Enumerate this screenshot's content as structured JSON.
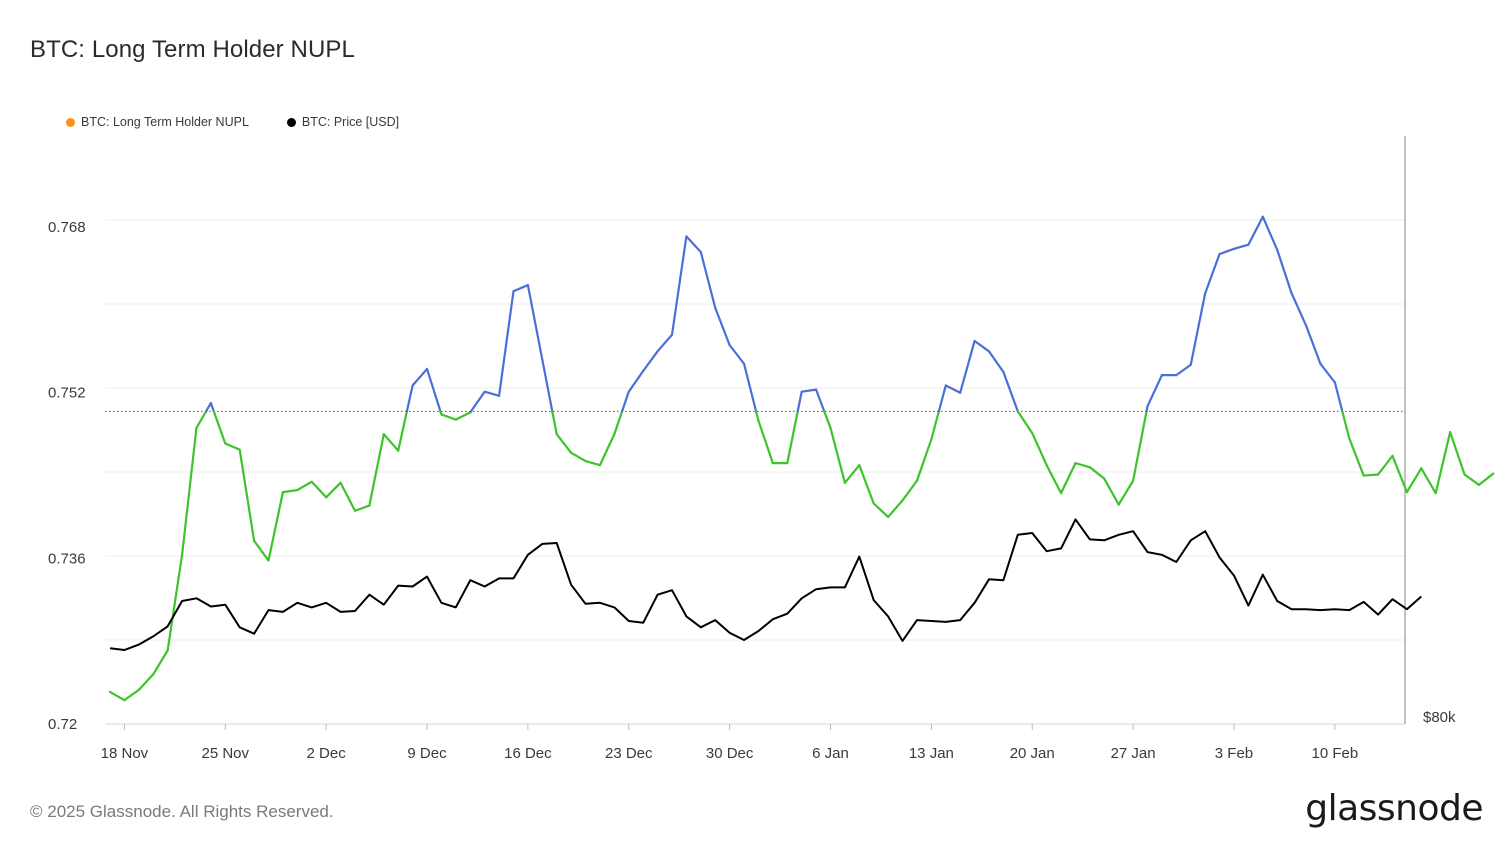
{
  "title": "BTC: Long Term Holder NUPL",
  "footer": "© 2025 Glassnode. All Rights Reserved.",
  "logo": "glassnode",
  "legend": [
    {
      "label": "BTC: Long Term Holder NUPL",
      "color": "#f7931a"
    },
    {
      "label": "BTC: Price [USD]",
      "color": "#000000"
    }
  ],
  "colors": {
    "above_threshold": "#4a6fd8",
    "below_threshold": "#3cc42a",
    "price": "#000000",
    "threshold_line": "#555555"
  },
  "chart_data": {
    "type": "line",
    "title": "BTC: Long Term Holder NUPL",
    "x_labels": [
      "18 Nov",
      "25 Nov",
      "2 Dec",
      "9 Dec",
      "16 Dec",
      "23 Dec",
      "30 Dec",
      "6 Jan",
      "13 Jan",
      "20 Jan",
      "27 Jan",
      "3 Feb",
      "10 Feb"
    ],
    "x_label_day_index": [
      1,
      8,
      15,
      22,
      29,
      36,
      43,
      50,
      57,
      64,
      71,
      78,
      85
    ],
    "y_ticks": [
      "0.72",
      "0.736",
      "0.752",
      "0.768"
    ],
    "y_tick_values": [
      0.72,
      0.736,
      0.752,
      0.768
    ],
    "ylim": [
      0.72,
      0.7768
    ],
    "right_axis_label": "$80k",
    "threshold": 0.7502,
    "grid": true,
    "legend_position": "top-left",
    "series": [
      {
        "name": "BTC: Long Term Holder NUPL",
        "start_day": 0,
        "values": [
          0.7231,
          0.7223,
          0.7233,
          0.7248,
          0.7271,
          0.7363,
          0.7486,
          0.751,
          0.7471,
          0.7465,
          0.7377,
          0.7358,
          0.7424,
          0.7426,
          0.7434,
          0.7419,
          0.7433,
          0.7406,
          0.7411,
          0.748,
          0.7464,
          0.7527,
          0.7543,
          0.7499,
          0.7494,
          0.7501,
          0.7521,
          0.7517,
          0.7618,
          0.7624,
          0.7552,
          0.748,
          0.7462,
          0.7454,
          0.745,
          0.748,
          0.7521,
          0.7541,
          0.756,
          0.7576,
          0.7671,
          0.7656,
          0.7602,
          0.7566,
          0.7548,
          0.7493,
          0.7452,
          0.7452,
          0.7521,
          0.7523,
          0.7486,
          0.7433,
          0.745,
          0.7413,
          0.74,
          0.7416,
          0.7435,
          0.7475,
          0.7527,
          0.752,
          0.757,
          0.756,
          0.754,
          0.7502,
          0.7481,
          0.745,
          0.7423,
          0.7452,
          0.7448,
          0.7437,
          0.7412,
          0.7435,
          0.7507,
          0.7537,
          0.7537,
          0.7547,
          0.7616,
          0.7654,
          0.7659,
          0.7663,
          0.769,
          0.7658,
          0.7616,
          0.7585,
          0.7548,
          0.753,
          0.7476,
          0.744,
          0.7441,
          0.7459,
          0.7424,
          0.7447,
          0.7423,
          0.7482,
          0.7441,
          0.7431,
          0.7442
        ]
      },
      {
        "name": "BTC: Price [USD]",
        "start_day": 0,
        "values": [
          91500,
          91300,
          91900,
          92800,
          93900,
          96700,
          97000,
          96100,
          96300,
          93800,
          93100,
          95700,
          95500,
          96500,
          96000,
          96500,
          95500,
          95600,
          97400,
          96300,
          98400,
          98300,
          99400,
          96500,
          96000,
          99000,
          98300,
          99200,
          99200,
          101800,
          103000,
          103100,
          98500,
          96400,
          96500,
          96000,
          94500,
          94300,
          97400,
          97900,
          95000,
          93800,
          94600,
          93200,
          92400,
          93400,
          94700,
          95300,
          97000,
          98000,
          98200,
          98200,
          101600,
          96800,
          95000,
          92300,
          94600,
          94500,
          94400,
          94600,
          96500,
          99100,
          99000,
          104000,
          104200,
          102200,
          102500,
          105700,
          103500,
          103400,
          104000,
          104400,
          102100,
          101800,
          101000,
          103400,
          104400,
          101500,
          99500,
          96200,
          99600,
          96700,
          95800,
          95800,
          95700,
          95800,
          95700,
          96600,
          95200,
          96900,
          95800,
          97200
        ]
      }
    ]
  }
}
